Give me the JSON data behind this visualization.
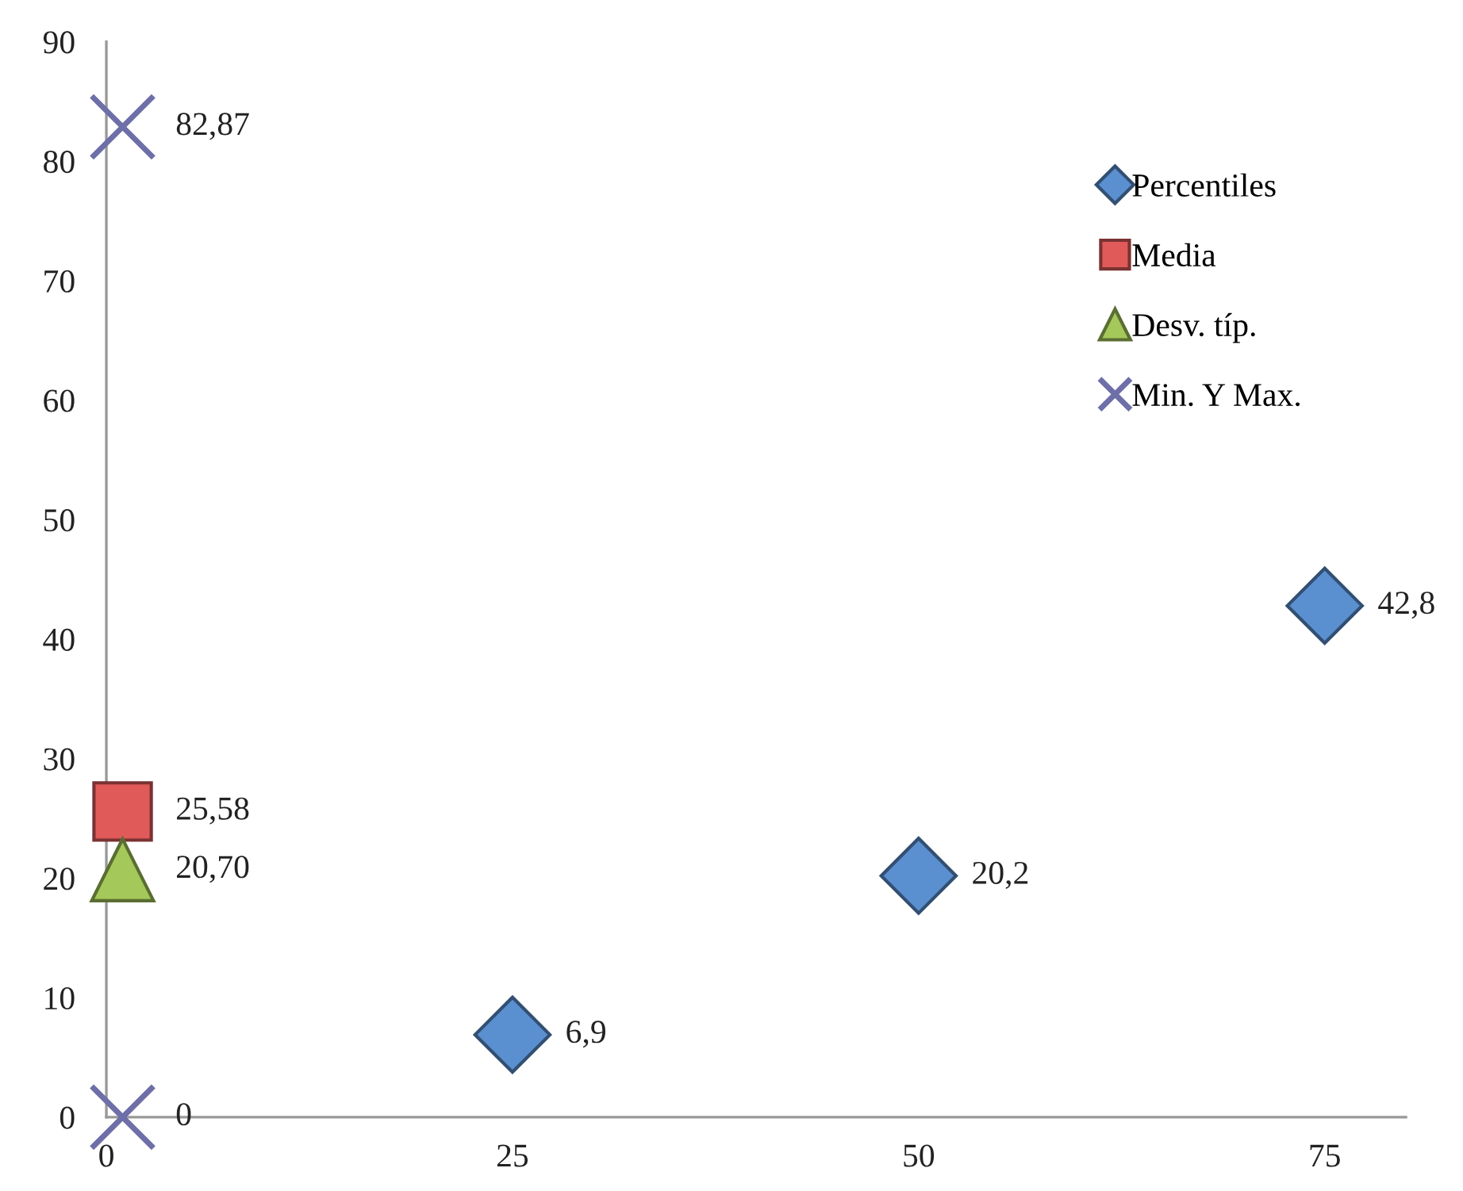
{
  "chart_data": {
    "type": "scatter",
    "xlim": [
      0,
      80
    ],
    "xticks": [
      0,
      25,
      50,
      75
    ],
    "ylim": [
      0,
      90
    ],
    "yticks": [
      0,
      10,
      20,
      30,
      40,
      50,
      60,
      70,
      80,
      90
    ],
    "legend": "top right",
    "series": [
      {
        "name": "Percentiles",
        "color": "#5a8fd0",
        "marker": "diamond",
        "x": [
          25,
          50,
          75
        ],
        "values": [
          6.9,
          20.2,
          42.8
        ],
        "value_labels": [
          "6,9",
          "20,2",
          "42,8"
        ]
      },
      {
        "name": "Media",
        "color": "#e05a5a",
        "marker": "square",
        "x": [
          1
        ],
        "values": [
          25.58
        ],
        "value_labels": [
          "25,58"
        ]
      },
      {
        "name": "Desv. típ.",
        "color": "#a4c85a",
        "marker": "triangle",
        "x": [
          1
        ],
        "values": [
          20.7
        ],
        "value_labels": [
          "20,70"
        ]
      },
      {
        "name": "Min. Y Max.",
        "color": "#6e6ea8",
        "marker": "cross",
        "x": [
          1,
          1
        ],
        "values": [
          82.87,
          0
        ],
        "value_labels": [
          "82,87",
          "0"
        ]
      }
    ]
  }
}
